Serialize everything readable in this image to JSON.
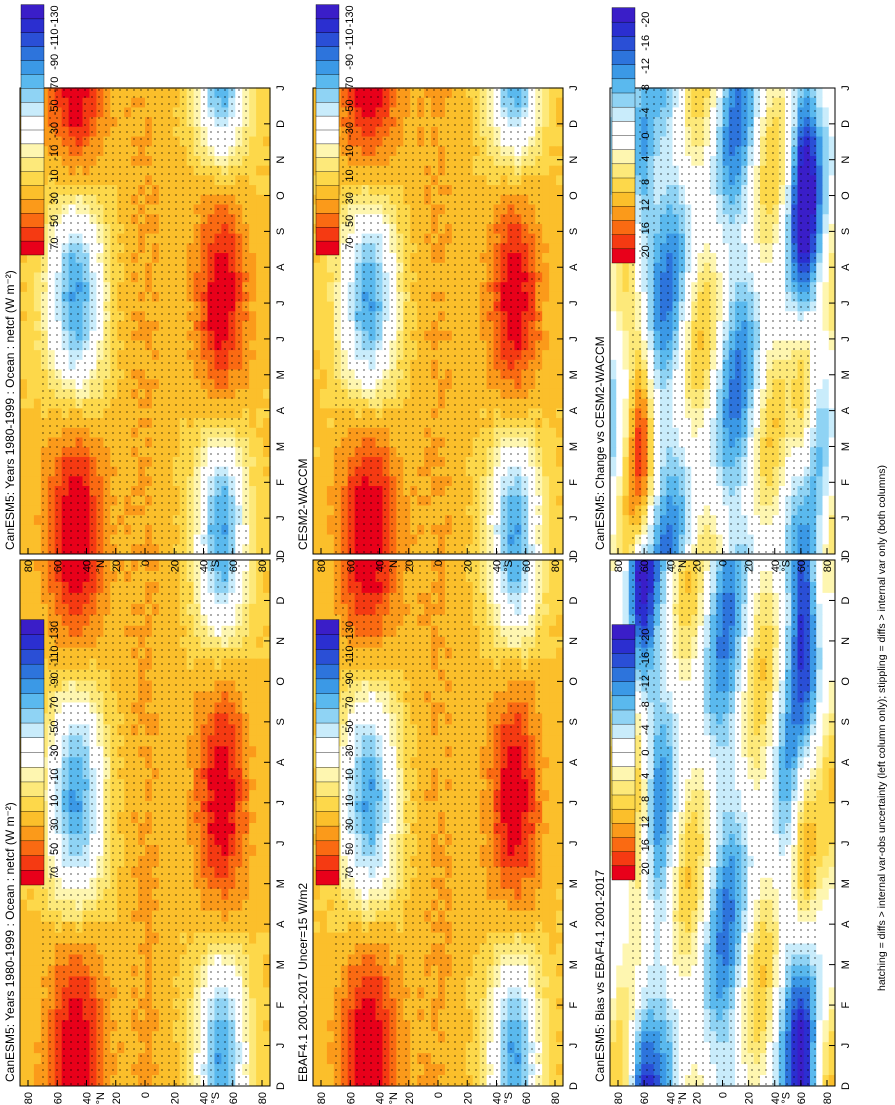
{
  "footer_note": "hatching = diffs > internal var-obs uncertainty (left column only); stippling = diffs > internal var only (both columns)",
  "chart_data": [
    {
      "type": "heatmap",
      "id": "r1c1",
      "title": "CanESM5: Years 1980-1999 : Ocean : netcf (W m⁻²)",
      "x_ticks": [
        "D",
        "J",
        "F",
        "M",
        "A",
        "M",
        "J",
        "J",
        "A",
        "S",
        "O",
        "N",
        "D",
        "J"
      ],
      "y_ticks": [
        "80",
        "60",
        "40",
        "20",
        "0",
        "20",
        "40",
        "60",
        "80"
      ],
      "y_unit_marks": [
        "°N",
        "°S"
      ],
      "colorbar": [
        "70",
        "50",
        "30",
        "10",
        "-10",
        "-30",
        "-50",
        "-70",
        "-90",
        "-110",
        "-130"
      ],
      "field": "clim",
      "seed": 1
    },
    {
      "type": "heatmap",
      "id": "r1c2",
      "title": "CanESM5: Years 1980-1999 : Ocean : netcf (W m⁻²)",
      "x_ticks": [
        "D",
        "J",
        "F",
        "M",
        "A",
        "M",
        "J",
        "J",
        "A",
        "S",
        "O",
        "N",
        "D",
        "J"
      ],
      "y_ticks": [
        "80",
        "60",
        "40",
        "20",
        "0",
        "20",
        "40",
        "60",
        "80"
      ],
      "y_unit_marks": [
        "°N",
        "°S"
      ],
      "colorbar": [
        "70",
        "50",
        "30",
        "10",
        "-10",
        "-30",
        "-50",
        "-70",
        "-90",
        "-110",
        "-130"
      ],
      "field": "clim",
      "seed": 2
    },
    {
      "type": "heatmap",
      "id": "r2c1",
      "title": "EBAF4.1 2001-2017 Uncer=15 W/m2",
      "x_ticks": [
        "D",
        "J",
        "F",
        "M",
        "A",
        "M",
        "J",
        "J",
        "A",
        "S",
        "O",
        "N",
        "D",
        "J"
      ],
      "y_ticks": [
        "80",
        "60",
        "40",
        "20",
        "0",
        "20",
        "40",
        "60",
        "80"
      ],
      "y_unit_marks": [
        "°N",
        "°S"
      ],
      "colorbar": [
        "70",
        "50",
        "30",
        "10",
        "-10",
        "-30",
        "-50",
        "-70",
        "-90",
        "-110",
        "-130"
      ],
      "field": "clim",
      "seed": 3
    },
    {
      "type": "heatmap",
      "id": "r2c2",
      "title": "CESM2-WACCM",
      "x_ticks": [
        "D",
        "J",
        "F",
        "M",
        "A",
        "M",
        "J",
        "J",
        "A",
        "S",
        "O",
        "N",
        "D",
        "J"
      ],
      "y_ticks": [
        "80",
        "60",
        "40",
        "20",
        "0",
        "20",
        "40",
        "60",
        "80"
      ],
      "y_unit_marks": [
        "°N",
        "°S"
      ],
      "colorbar": [
        "70",
        "50",
        "30",
        "10",
        "-10",
        "-30",
        "-50",
        "-70",
        "-90",
        "-110",
        "-130"
      ],
      "field": "clim",
      "seed": 4
    },
    {
      "type": "heatmap",
      "id": "r3c1",
      "title": "CanESM5: Bias vs EBAF4.1 2001-2017",
      "x_ticks": [
        "D",
        "J",
        "F",
        "M",
        "A",
        "M",
        "J",
        "J",
        "A",
        "S",
        "O",
        "N",
        "D",
        "J"
      ],
      "y_ticks": [
        "80",
        "60",
        "40",
        "20",
        "0",
        "20",
        "40",
        "60",
        "80"
      ],
      "y_unit_marks": [
        "°N",
        "°S"
      ],
      "colorbar": [
        "20",
        "16",
        "12",
        "8",
        "4",
        "0",
        "-4",
        "-8",
        "-12",
        "-16",
        "-20"
      ],
      "field": "diff",
      "seed": 5
    },
    {
      "type": "heatmap",
      "id": "r3c2",
      "title": "CanESM5: Change vs CESM2-WACCM",
      "x_ticks": [
        "D",
        "J",
        "F",
        "M",
        "A",
        "M",
        "J",
        "J",
        "A",
        "S",
        "O",
        "N",
        "D",
        "J"
      ],
      "y_ticks": [
        "80",
        "60",
        "40",
        "20",
        "0",
        "20",
        "40",
        "60",
        "80"
      ],
      "y_unit_marks": [
        "°N",
        "°S"
      ],
      "colorbar": [
        "20",
        "16",
        "12",
        "8",
        "4",
        "0",
        "-4",
        "-8",
        "-12",
        "-16",
        "-20"
      ],
      "field": "diff",
      "seed": 6
    }
  ],
  "colors": {
    "scale": [
      "#e8001a",
      "#f53a12",
      "#fa6a12",
      "#fb9a1a",
      "#fbbf2b",
      "#fdd84a",
      "#fde97a",
      "#fef6b0",
      "#ffffff",
      "#ffffff",
      "#c9ecfb",
      "#8fd3f4",
      "#5ab9ee",
      "#3b99e6",
      "#2d74dc",
      "#2a4fd6",
      "#2b2fd0",
      "#3a1ec8"
    ]
  }
}
